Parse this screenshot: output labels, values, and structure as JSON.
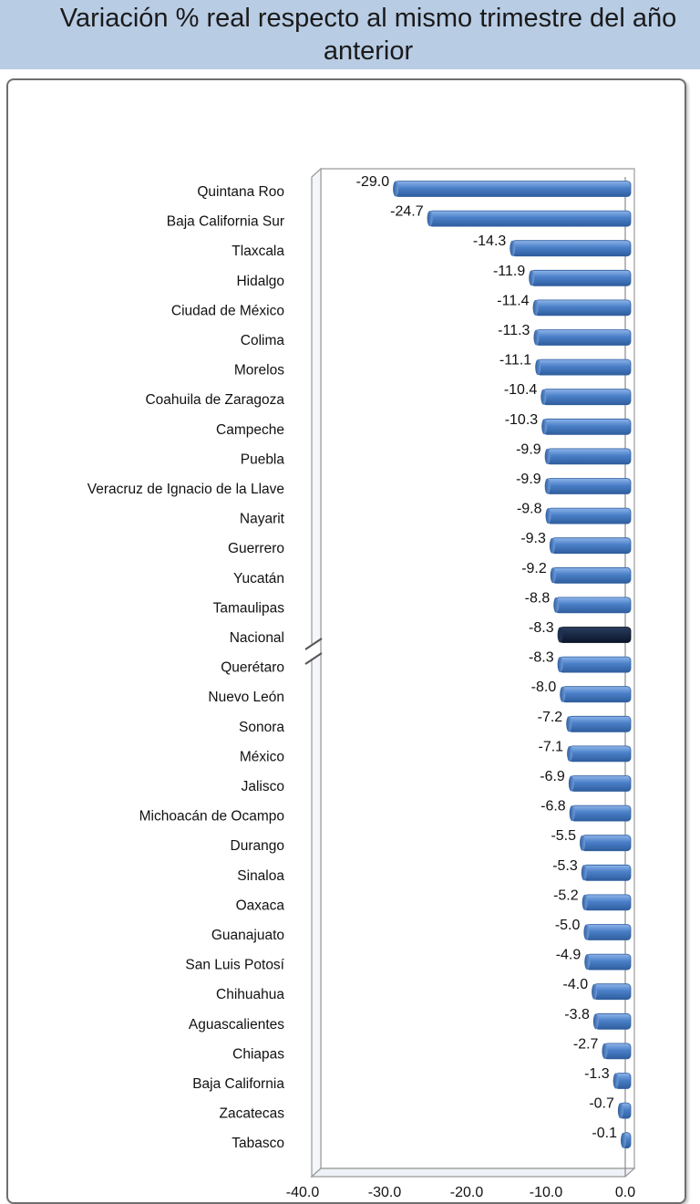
{
  "title": "Variación % real respecto al mismo trimestre del año anterior",
  "colors": {
    "bar": "#4a7fc8",
    "bar_light": "#8fb5ea",
    "bar_dark": "#2f5e9e",
    "highlight": "#0f1f3a",
    "title_band": "#b8cce4"
  },
  "chart_data": {
    "type": "bar",
    "orientation": "horizontal",
    "title": "Variación % real respecto al mismo trimestre del año anterior",
    "categories": [
      "Quintana Roo",
      "Baja California Sur",
      "Tlaxcala",
      "Hidalgo",
      "Ciudad de México",
      "Colima",
      "Morelos",
      "Coahuila de Zaragoza",
      "Campeche",
      "Puebla",
      "Veracruz de Ignacio de la Llave",
      "Nayarit",
      "Guerrero",
      "Yucatán",
      "Tamaulipas",
      "Nacional",
      "Querétaro",
      "Nuevo León",
      "Sonora",
      "México",
      "Jalisco",
      "Michoacán de Ocampo",
      "Durango",
      "Sinaloa",
      "Oaxaca",
      "Guanajuato",
      "San Luis Potosí",
      "Chihuahua",
      "Aguascalientes",
      "Chiapas",
      "Baja California",
      "Zacatecas",
      "Tabasco"
    ],
    "values": [
      -29.0,
      -24.7,
      -14.3,
      -11.9,
      -11.4,
      -11.3,
      -11.1,
      -10.4,
      -10.3,
      -9.9,
      -9.9,
      -9.8,
      -9.3,
      -9.2,
      -8.8,
      -8.3,
      -8.3,
      -8.0,
      -7.2,
      -7.1,
      -6.9,
      -6.8,
      -5.5,
      -5.3,
      -5.2,
      -5.0,
      -4.9,
      -4.0,
      -3.8,
      -2.7,
      -1.3,
      -0.7,
      -0.1
    ],
    "value_labels": [
      "-29.0",
      "-24.7",
      "-14.3",
      "-11.9",
      "-11.4",
      "-11.3",
      "-11.1",
      "-10.4",
      "-10.3",
      "-9.9",
      "-9.9",
      "-9.8",
      "-9.3",
      "-9.2",
      "-8.8",
      "-8.3",
      "-8.3",
      "-8.0",
      "-7.2",
      "-7.1",
      "-6.9",
      "-6.8",
      "-5.5",
      "-5.3",
      "-5.2",
      "-5.0",
      "-4.9",
      "-4.0",
      "-3.8",
      "-2.7",
      "-1.3",
      "-0.7",
      "-0.1"
    ],
    "highlight_category": "Nacional",
    "axis_break": true,
    "xlim": [
      -40,
      0
    ],
    "x_ticks": [
      "-40.0",
      "-30.0",
      "-20.0",
      "-10.0",
      "0.0"
    ],
    "x_tick_values": [
      -40,
      -30,
      -20,
      -10,
      0
    ],
    "grid": false,
    "legend": "none"
  }
}
